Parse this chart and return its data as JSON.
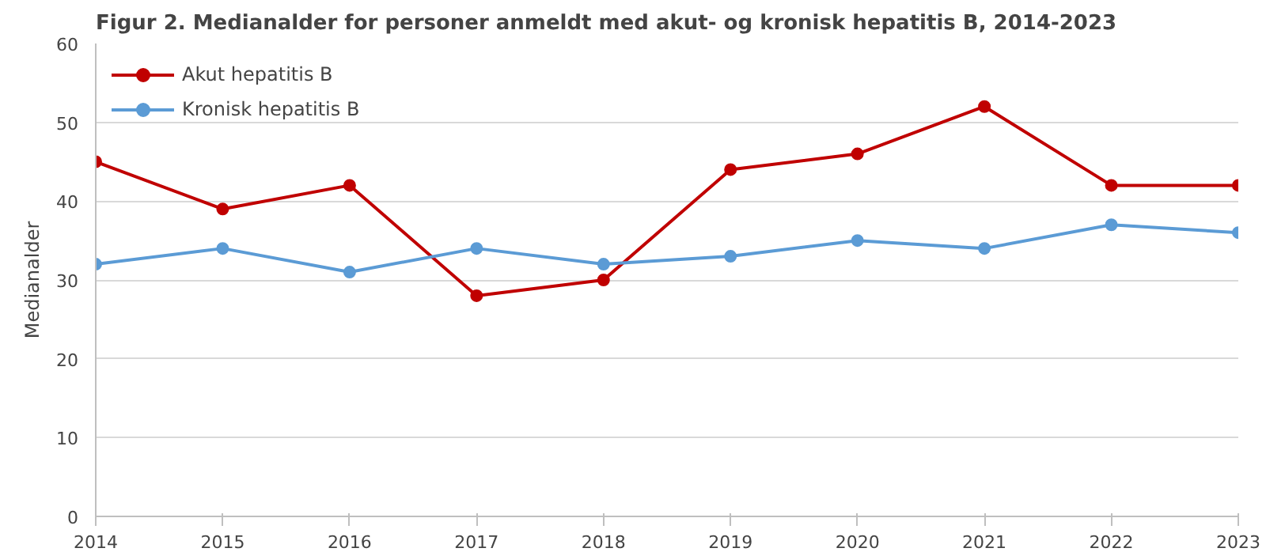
{
  "chart_data": {
    "type": "line",
    "title": "Figur 2. Medianalder for personer anmeldt med akut- og kronisk hepatitis B, 2014-2023",
    "ylabel": "Medianalder",
    "x": [
      2014,
      2015,
      2016,
      2017,
      2018,
      2019,
      2020,
      2021,
      2022,
      2023
    ],
    "xlim": [
      2014,
      2023
    ],
    "xticks": [
      2014,
      2015,
      2016,
      2017,
      2018,
      2019,
      2020,
      2021,
      2022,
      2023
    ],
    "ylim": [
      0,
      60
    ],
    "yticks": [
      0,
      10,
      20,
      30,
      40,
      50,
      60
    ],
    "series": [
      {
        "name": "Akut hepatitis B",
        "color": "#c00000",
        "values": [
          45,
          39,
          42,
          28,
          30,
          44,
          46,
          52,
          42,
          42
        ]
      },
      {
        "name": "Kronisk hepatitis B",
        "color": "#5b9bd5",
        "values": [
          32,
          34,
          31,
          34,
          32,
          33,
          35,
          34,
          37,
          36
        ]
      }
    ],
    "grid": "y",
    "legend": "top left",
    "marker": "circle",
    "line_style": "solid"
  }
}
